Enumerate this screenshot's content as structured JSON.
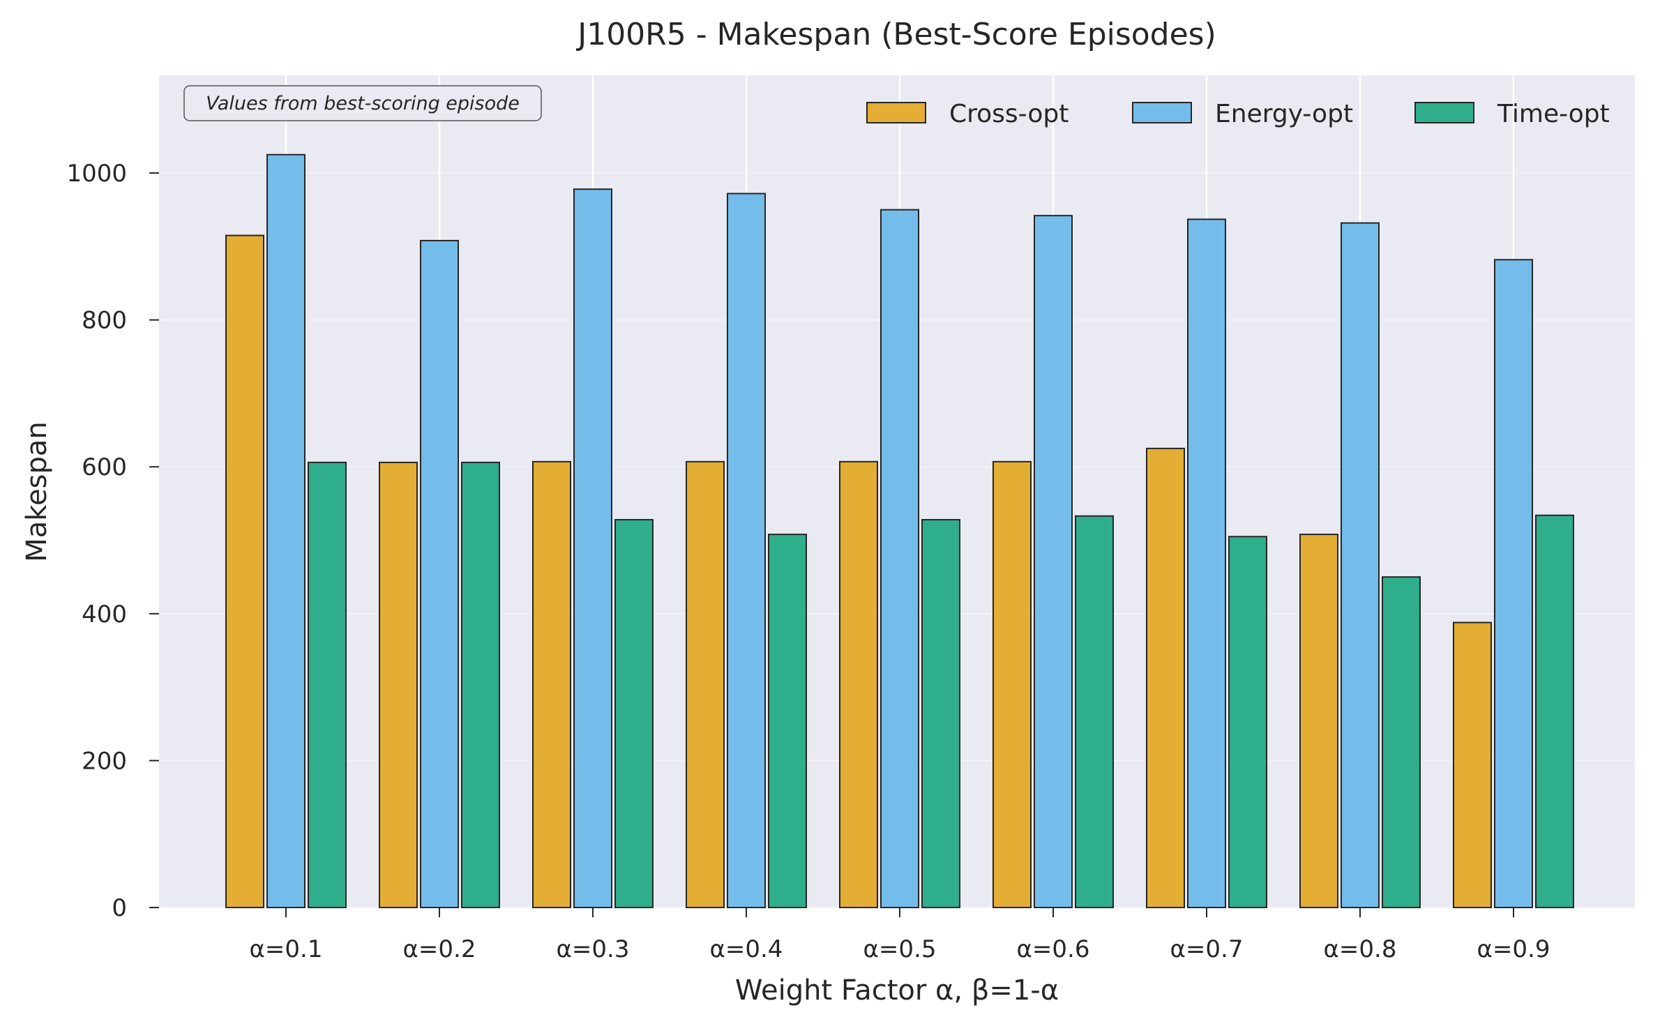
{
  "chart_data": {
    "type": "bar",
    "title": "J100R5 - Makespan (Best-Score Episodes)",
    "xlabel": "Weight Factor α, β=1-α",
    "ylabel": "Makespan",
    "annotation": "Values from best-scoring episode",
    "categories": [
      "α=0.1",
      "α=0.2",
      "α=0.3",
      "α=0.4",
      "α=0.5",
      "α=0.6",
      "α=0.7",
      "α=0.8",
      "α=0.9"
    ],
    "series": [
      {
        "name": "Cross-opt",
        "color": "#E3AE33",
        "values": [
          915,
          606,
          607,
          607,
          607,
          607,
          625,
          508,
          388
        ]
      },
      {
        "name": "Energy-opt",
        "color": "#74BDEB",
        "values": [
          1025,
          908,
          978,
          972,
          950,
          942,
          937,
          932,
          882
        ]
      },
      {
        "name": "Time-opt",
        "color": "#2FAE8C",
        "values": [
          606,
          606,
          528,
          508,
          528,
          533,
          505,
          450,
          534
        ]
      }
    ],
    "ylim": [
      0,
      1133
    ],
    "yticks": [
      0,
      200,
      400,
      600,
      800,
      1000
    ],
    "grid": true,
    "legend_position": "top-right"
  }
}
